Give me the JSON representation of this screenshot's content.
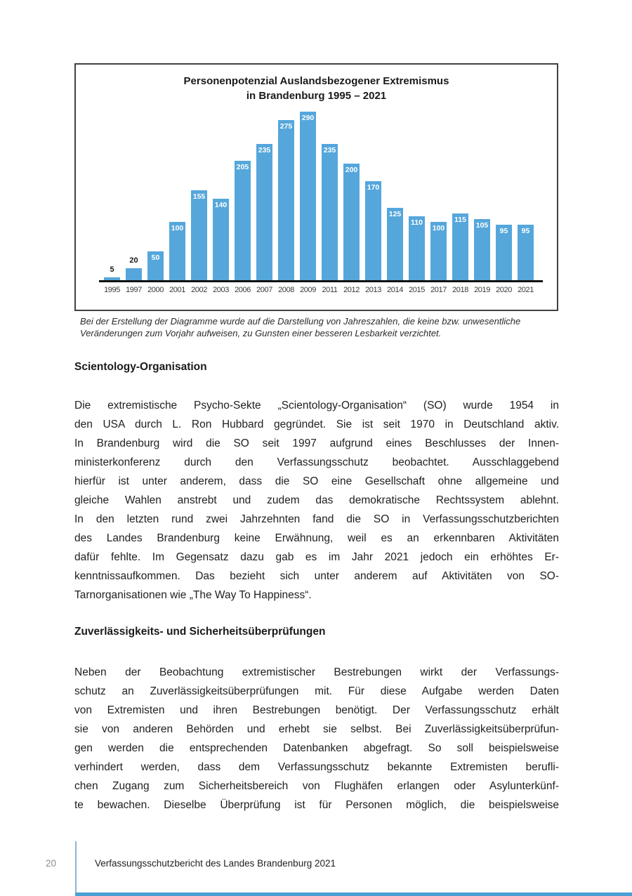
{
  "chart_data": {
    "type": "bar",
    "title_line1": "Personenpotenzial Auslandsbezogener Extremismus",
    "title_line2": "in Brandenburg 1995 – 2021",
    "categories": [
      "1995",
      "1997",
      "2000",
      "2001",
      "2002",
      "2003",
      "2006",
      "2007",
      "2008",
      "2009",
      "2011",
      "2012",
      "2013",
      "2014",
      "2015",
      "2017",
      "2018",
      "2019",
      "2020",
      "2021"
    ],
    "values": [
      5,
      20,
      50,
      100,
      155,
      140,
      205,
      235,
      275,
      290,
      235,
      200,
      170,
      125,
      110,
      100,
      115,
      105,
      95,
      95
    ],
    "xlabel": "",
    "ylabel": "",
    "ylim": [
      0,
      300
    ],
    "grid": false,
    "legend": false,
    "bar_color": "#55A7DB",
    "value_label_color_inside": "#FFFFFF",
    "value_label_color_above": "#1A1A1A"
  },
  "caption": {
    "line1": "Bei der Erstellung der Diagramme wurde auf die Darstellung von Jahreszahlen, die keine bzw. unwesentliche",
    "line2": "Veränderungen zum Vorjahr aufweisen, zu Gunsten einer besseren Lesbarkeit verzichtet."
  },
  "content": {
    "heading1": "Scientology-Organisation",
    "p1_lines": [
      "Die extremistische Psycho-Sekte „Scientology-Organisation“ (SO) wurde 1954 in",
      "den USA durch L. Ron Hubbard gegründet. Sie ist seit 1970 in Deutschland aktiv.",
      "In Brandenburg wird die SO seit 1997 aufgrund eines Beschlusses der Innen-",
      "ministerkonferenz durch den Verfassungsschutz beobachtet. Ausschlaggebend",
      "hierfür ist unter anderem, dass die SO eine Gesellschaft ohne allgemeine und",
      "gleiche Wahlen anstrebt und zudem das demokratische Rechtssystem ablehnt.",
      "In den letzten rund zwei Jahrzehnten fand die SO in Verfassungsschutzberichten",
      "des Landes Brandenburg keine Erwähnung, weil es an erkennbaren Aktivitäten",
      "dafür fehlte. Im Gegensatz dazu gab es im Jahr 2021 jedoch ein erhöhtes Er-",
      "kenntnissaufkommen. Das bezieht sich unter anderem auf Aktivitäten von SO-",
      "Tarnorganisationen wie „The Way To Happiness“."
    ],
    "heading2": "Zuverlässigkeits- und Sicherheitsüberprüfungen",
    "p2_lines": [
      "Neben der Beobachtung extremistischer Bestrebungen wirkt der Verfassungs-",
      "schutz an Zuverlässigkeitsüberprüfungen mit. Für diese Aufgabe werden Daten",
      "von Extremisten und ihren Bestrebungen benötigt. Der Verfassungsschutz erhält",
      "sie von anderen Behörden und erhebt sie selbst. Bei Zuverlässigkeitsüberprüfun-",
      "gen werden die entsprechenden Datenbanken abgefragt. So soll beispielsweise",
      "verhindert werden, dass dem Verfassungsschutz bekannte Extremisten berufli-",
      "chen Zugang zum Sicherheitsbereich von Flughäfen erlangen oder Asylunterkünf-",
      "te bewachen. Dieselbe Überprüfung ist für Personen möglich, die beispielsweise"
    ]
  },
  "footer": {
    "page_number": "20",
    "report_title": "Verfassungsschutzbericht des Landes Brandenburg 2021"
  },
  "colors": {
    "bar": "#55A7DB",
    "footer_rule": "#8FB4D6",
    "bottom_bar": "#4B9FD5"
  }
}
